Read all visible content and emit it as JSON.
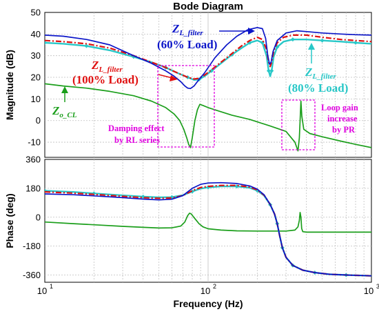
{
  "chart_data": {
    "type": "line",
    "title": "Bode Diagram",
    "xlabel": "Frequency  (Hz)",
    "x_scale": "log",
    "xlim": [
      10,
      1000
    ],
    "x_ticks": [
      10,
      100,
      1000
    ],
    "panels": [
      {
        "id": "magnitude",
        "ylabel": "Magnitude (dB)",
        "ylim": [
          -17,
          50
        ],
        "y_ticks": [
          -10,
          0,
          10,
          20,
          30,
          40,
          50
        ],
        "grid": true,
        "series": [
          {
            "name": "Z_L_filter (60% Load)",
            "color": "#0a14c8",
            "style": "solid",
            "x": [
              10,
              13,
              18,
              25,
              35,
              45,
              55,
              62,
              68,
              72,
              75,
              78,
              82,
              88,
              95,
              110,
              130,
              150,
              175,
              200,
              215,
              225,
              232,
              238,
              243,
              250,
              265,
              300,
              350,
              420,
              500,
              650,
              800,
              1000
            ],
            "y": [
              39.5,
              39,
              37.5,
              35,
              30,
              26.5,
              23,
              20.5,
              18,
              16,
              15,
              14.8,
              16,
              19,
              22,
              29,
              35,
              39,
              42,
              43,
              42.5,
              38,
              30,
              26,
              27,
              32,
              37,
              40.5,
              41.5,
              41,
              40.5,
              40,
              39.7,
              39.5
            ]
          },
          {
            "name": "Z_L_filter (100% Load)",
            "color": "#e01010",
            "style": "dashdot",
            "x": [
              10,
              13,
              18,
              25,
              35,
              45,
              55,
              65,
              75,
              82,
              88,
              95,
              105,
              120,
              140,
              160,
              180,
              200,
              215,
              228,
              235,
              240,
              245,
              252,
              265,
              290,
              330,
              400,
              500,
              650,
              800,
              1000
            ],
            "y": [
              37,
              36.5,
              35.5,
              33.5,
              30,
              27,
              24.5,
              22,
              20,
              19.2,
              19.5,
              21,
              23.5,
              27,
              31,
              34.5,
              37,
              38.5,
              37.5,
              33,
              27,
              25,
              27,
              32,
              36,
              38.5,
              39.5,
              39.5,
              38.5,
              37.5,
              37,
              36.5
            ]
          },
          {
            "name": "Z_L_filter (80% Load)",
            "color": "#28c8c8",
            "style": "solid-marker",
            "x": [
              10,
              13,
              18,
              25,
              35,
              45,
              55,
              65,
              75,
              82,
              88,
              95,
              105,
              120,
              140,
              160,
              180,
              200,
              215,
              228,
              235,
              240,
              245,
              252,
              265,
              290,
              330,
              400,
              500,
              650,
              800,
              1000
            ],
            "y": [
              36,
              35.5,
              34.5,
              32.5,
              29.5,
              27,
              24.5,
              22,
              20,
              18.8,
              19,
              20.5,
              23,
              26.5,
              30.5,
              33.5,
              36,
              37,
              36,
              30,
              23,
              20.5,
              23,
              29.5,
              34,
              36.5,
              37.5,
              37.5,
              37,
              36.5,
              36,
              35.5
            ]
          },
          {
            "name": "Z_o_CL",
            "color": "#1a9e1a",
            "style": "solid",
            "x": [
              10,
              13,
              18,
              25,
              35,
              45,
              55,
              62,
              67,
              71,
              74,
              76,
              78,
              80,
              83,
              86,
              89,
              93,
              100,
              115,
              140,
              180,
              240,
              300,
              340,
              355,
              362,
              366,
              370,
              375,
              385,
              420,
              500,
              650,
              800,
              1000
            ],
            "y": [
              17,
              16,
              15,
              13.5,
              11.5,
              9,
              6,
              3,
              0,
              -4,
              -8,
              -11,
              -12.5,
              -8,
              0,
              5,
              7.5,
              7,
              6,
              4.5,
              2.5,
              0.5,
              -2.5,
              -5,
              -10,
              -14,
              -8,
              0,
              9,
              2,
              -4,
              -6,
              -7.5,
              -9.5,
              -11,
              -12.5
            ]
          }
        ]
      },
      {
        "id": "phase",
        "ylabel": "Phase (deg)",
        "ylim": [
          -405,
          360
        ],
        "y_ticks": [
          -360,
          -180,
          0,
          180,
          360
        ],
        "grid": true,
        "series": [
          {
            "name": "Z_L_filter (60% Load)",
            "color": "#0a14c8",
            "style": "solid",
            "x": [
              10,
              15,
              20,
              30,
              40,
              50,
              60,
              70,
              80,
              90,
              100,
              120,
              150,
              180,
              200,
              220,
              240,
              255,
              265,
              275,
              285,
              300,
              330,
              380,
              450,
              550,
              700,
              1000
            ],
            "y": [
              145,
              140,
              133,
              122,
              113,
              108,
              112,
              135,
              180,
              205,
              213,
              215,
              210,
              195,
              175,
              140,
              80,
              20,
              -40,
              -120,
              -190,
              -250,
              -300,
              -330,
              -345,
              -355,
              -360,
              -365
            ]
          },
          {
            "name": "Z_L_filter (100% Load)",
            "color": "#e01010",
            "style": "dashdot",
            "x": [
              10,
              15,
              20,
              30,
              40,
              50,
              60,
              70,
              80,
              90,
              100,
              120,
              150,
              180,
              200,
              220,
              240,
              255,
              265,
              275,
              285,
              300,
              330,
              380,
              450,
              550,
              700,
              1000
            ],
            "y": [
              158,
              150,
              142,
              130,
              122,
              118,
              120,
              135,
              165,
              185,
              192,
              198,
              198,
              188,
              170,
              138,
              80,
              20,
              -40,
              -120,
              -190,
              -250,
              -300,
              -330,
              -345,
              -355,
              -360,
              -365
            ]
          },
          {
            "name": "Z_L_filter (80% Load)",
            "color": "#28c8c8",
            "style": "solid-marker",
            "x": [
              10,
              15,
              20,
              30,
              40,
              50,
              60,
              70,
              80,
              90,
              100,
              120,
              150,
              180,
              200,
              220,
              240,
              255,
              265,
              275,
              285,
              300,
              330,
              380,
              450,
              550,
              700,
              1000
            ],
            "y": [
              165,
              157,
              148,
              136,
              128,
              124,
              125,
              137,
              160,
              178,
              186,
              192,
              192,
              183,
              166,
              135,
              78,
              20,
              -40,
              -120,
              -190,
              -250,
              -300,
              -330,
              -345,
              -355,
              -360,
              -365
            ]
          },
          {
            "name": "Z_o_CL",
            "color": "#1a9e1a",
            "style": "solid",
            "x": [
              10,
              15,
              20,
              30,
              40,
              50,
              60,
              68,
              72,
              75,
              77,
              79,
              81,
              84,
              88,
              93,
              100,
              120,
              150,
              200,
              250,
              300,
              340,
              355,
              362,
              366,
              370,
              374,
              380,
              400,
              500,
              700,
              1000
            ],
            "y": [
              -30,
              -40,
              -47,
              -57,
              -63,
              -67,
              -66,
              -55,
              -30,
              10,
              25,
              20,
              5,
              -15,
              -40,
              -60,
              -72,
              -80,
              -85,
              -86,
              -86,
              -86,
              -80,
              -60,
              -20,
              30,
              0,
              -70,
              -90,
              -93,
              -93,
              -93,
              -93
            ]
          }
        ]
      }
    ],
    "annotations": {
      "z_l_main": "Z",
      "z_l_sub": "L_filter",
      "z_o_main": "Z",
      "z_o_sub": "o_CL",
      "load_60": "(60% Load)",
      "load_100": "(100% Load)",
      "load_80": "(80% Load)",
      "damping_line1": "Damping effect",
      "damping_line2": "by RL series",
      "pr_line1": "Loop gain",
      "pr_line2": "increase",
      "pr_line3": "by PR"
    },
    "colors": {
      "blue": "#0a14c8",
      "red": "#e01010",
      "cyan": "#28c8c8",
      "green": "#1a9e1a",
      "magenta": "#e000e0",
      "grid": "#bfbfbf"
    }
  }
}
